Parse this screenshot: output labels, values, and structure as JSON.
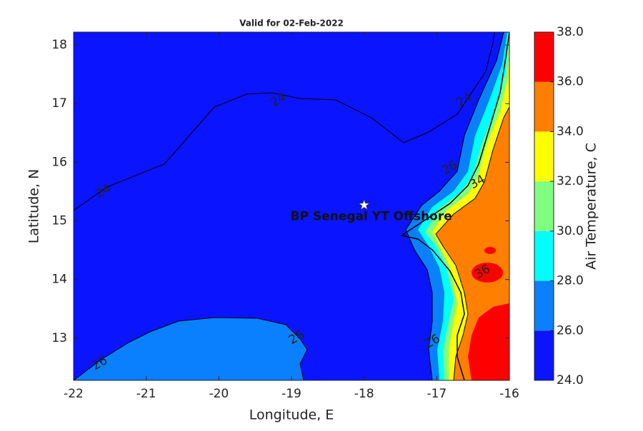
{
  "chart_data": {
    "type": "contour_map",
    "title": "Valid for 02-Feb-2022",
    "x_label": "Longitude, E",
    "y_label": "Latitude, N",
    "xlim": [
      -22,
      -16
    ],
    "ylim": [
      12.28,
      18.22
    ],
    "xticks": [
      -22,
      -21,
      -20,
      -19,
      -18,
      -17,
      -16
    ],
    "yticks": [
      13,
      14,
      15,
      16,
      17,
      18
    ],
    "colorbar": {
      "label": "Air Temperature, C",
      "ticks": [
        {
          "value": 24,
          "label": "24.0"
        },
        {
          "value": 26,
          "label": "26.0"
        },
        {
          "value": 28,
          "label": "28.0"
        },
        {
          "value": 30,
          "label": "30.0"
        },
        {
          "value": 32,
          "label": "32.0"
        },
        {
          "value": 34,
          "label": "34.0"
        },
        {
          "value": 36,
          "label": "36.0"
        },
        {
          "value": 38,
          "label": "38.0"
        }
      ],
      "colors": [
        "#0a14ff",
        "#0a80ff",
        "#00ffff",
        "#80ff80",
        "#ffff00",
        "#ff8000",
        "#ff0000"
      ]
    },
    "contour_labels": [
      {
        "value": 24,
        "lon": -19.18,
        "lat": 17.06
      },
      {
        "value": 24,
        "lon": -21.59,
        "lat": 15.5
      },
      {
        "value": 24,
        "lon": -16.62,
        "lat": 17.06
      },
      {
        "value": 26,
        "lon": -18.93,
        "lat": 13.01
      },
      {
        "value": 26,
        "lon": -21.64,
        "lat": 12.57
      },
      {
        "value": 26,
        "lon": -16.82,
        "lat": 15.9
      },
      {
        "value": 34,
        "lon": -16.44,
        "lat": 15.66
      },
      {
        "value": 26,
        "lon": -17.06,
        "lat": 12.94
      },
      {
        "value": 36,
        "lon": -16.37,
        "lat": 14.13
      }
    ],
    "site": {
      "name": "BP Senegal YT Offshore",
      "lon": -18,
      "lat": 15.27
    }
  }
}
